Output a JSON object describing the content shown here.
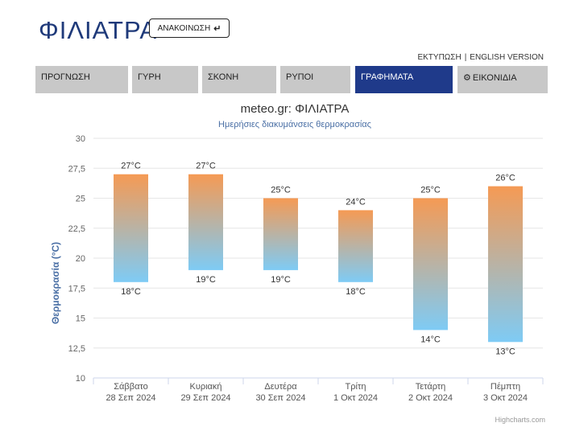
{
  "header": {
    "city": "ΦΙΛΙΑΤΡΑ",
    "announce_label": "ΑΝΑΚΟΙΝΩΣΗ",
    "announce_icon": "return-arrow-icon",
    "print_label": "ΕΚΤΥΠΩΣΗ",
    "separator": "|",
    "english_label": "ENGLISH VERSION"
  },
  "tabs": [
    {
      "label": "ΠΡΟΓΝΩΣΗ"
    },
    {
      "label": "ΓΥΡΗ"
    },
    {
      "label": "ΣΚΟΝΗ"
    },
    {
      "label": "ΡΥΠΟΙ"
    },
    {
      "label": "ΓΡΑΦΗΜΑΤΑ",
      "active": true
    },
    {
      "label": "ΕΙΚΟΝΙΔΙΑ",
      "icon": "gear-icon"
    }
  ],
  "colors": {
    "title": "#1f3a7a",
    "tab_active": "#1f3a8a",
    "tab_inactive": "#c8c8c8",
    "bar_top": "#f59a54",
    "bar_bottom": "#7ecbf5",
    "axis_label": "#4a6fa5"
  },
  "chart_data": {
    "type": "columnrange",
    "title": "meteo.gr: ΦΙΛΙΑΤΡΑ",
    "subtitle": "Ημερήσιες διακυμάνσεις θερμοκρασίας",
    "ylabel": "Θερμοκρασία (°C)",
    "ylim": [
      10,
      30
    ],
    "yticks": [
      "10",
      "12,5",
      "15",
      "17,5",
      "20",
      "22,5",
      "25",
      "27,5",
      "30"
    ],
    "categories": [
      [
        "Σάββατο",
        "28 Σεπ 2024"
      ],
      [
        "Κυριακή",
        "29 Σεπ 2024"
      ],
      [
        "Δευτέρα",
        "30 Σεπ 2024"
      ],
      [
        "Τρίτη",
        "1 Οκτ 2024"
      ],
      [
        "Τετάρτη",
        "2 Οκτ 2024"
      ],
      [
        "Πέμπτη",
        "3 Οκτ 2024"
      ]
    ],
    "low": [
      18,
      19,
      19,
      18,
      14,
      13
    ],
    "high": [
      27,
      27,
      25,
      24,
      25,
      26
    ],
    "low_labels": [
      "18°C",
      "19°C",
      "19°C",
      "18°C",
      "14°C",
      "13°C"
    ],
    "high_labels": [
      "27°C",
      "27°C",
      "25°C",
      "24°C",
      "25°C",
      "26°C"
    ],
    "grid": true,
    "credit": "Highcharts.com"
  }
}
